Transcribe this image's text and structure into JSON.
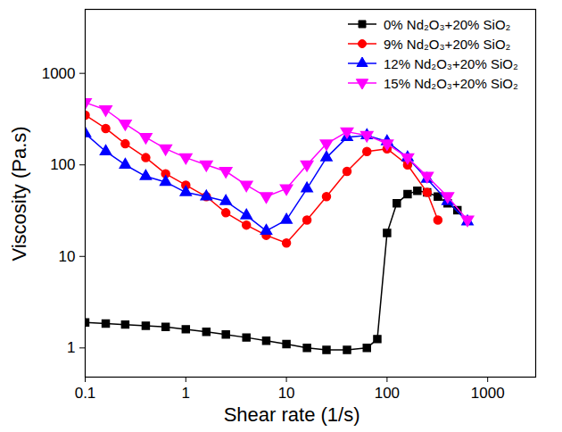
{
  "chart_data": {
    "type": "line",
    "log": true,
    "grid": false,
    "legend": "top-right",
    "x_label": "Shear rate (1/s)",
    "y_label": "Viscosity (Pa.s)",
    "xlim": [
      0.1,
      3000
    ],
    "ylim": [
      0.48,
      5000
    ],
    "xticks": [
      0.1,
      1,
      10,
      100,
      1000
    ],
    "yticks": [
      1,
      10,
      100,
      1000
    ],
    "series": [
      {
        "name": "0% Nd₂O₃+20% SiO₂",
        "color": "#000000",
        "marker": "square",
        "x": [
          0.1,
          0.16,
          0.25,
          0.4,
          0.63,
          1,
          1.6,
          2.5,
          4,
          6.3,
          10,
          16,
          25,
          40,
          63,
          80,
          100,
          125,
          160,
          200,
          250,
          320,
          400,
          500
        ],
        "values": [
          1.9,
          1.85,
          1.8,
          1.75,
          1.7,
          1.6,
          1.5,
          1.4,
          1.3,
          1.2,
          1.1,
          1.0,
          0.95,
          0.95,
          1.0,
          1.25,
          18,
          38,
          48,
          52,
          50,
          45,
          38,
          32
        ]
      },
      {
        "name": "9% Nd₂O₃+20% SiO₂",
        "color": "#ff0000",
        "marker": "circle",
        "x": [
          0.1,
          0.16,
          0.25,
          0.4,
          0.63,
          1,
          1.6,
          2.5,
          4,
          6.3,
          10,
          16,
          25,
          40,
          63,
          100,
          160,
          250,
          320
        ],
        "values": [
          350,
          250,
          170,
          120,
          80,
          60,
          45,
          30,
          22,
          17,
          14,
          25,
          45,
          85,
          140,
          150,
          100,
          50,
          25
        ]
      },
      {
        "name": "12% Nd₂O₃+20% SiO₂",
        "color": "#0000ff",
        "marker": "triangle",
        "x": [
          0.1,
          0.16,
          0.25,
          0.4,
          0.63,
          1,
          1.6,
          2.5,
          4,
          6.3,
          10,
          16,
          25,
          40,
          63,
          100,
          160,
          250,
          400,
          630
        ],
        "values": [
          220,
          140,
          100,
          75,
          65,
          50,
          45,
          40,
          28,
          19,
          25,
          55,
          120,
          200,
          210,
          180,
          120,
          70,
          40,
          24
        ]
      },
      {
        "name": "15% Nd₂O₃+20% SiO₂",
        "color": "#ff00ff",
        "marker": "triangle-down",
        "x": [
          0.1,
          0.16,
          0.25,
          0.4,
          0.63,
          1,
          1.6,
          2.5,
          4,
          6.3,
          10,
          16,
          25,
          40,
          63,
          100,
          160,
          250,
          400,
          630
        ],
        "values": [
          480,
          400,
          280,
          200,
          150,
          120,
          100,
          85,
          60,
          45,
          55,
          100,
          170,
          230,
          210,
          170,
          120,
          75,
          45,
          25
        ]
      }
    ]
  }
}
